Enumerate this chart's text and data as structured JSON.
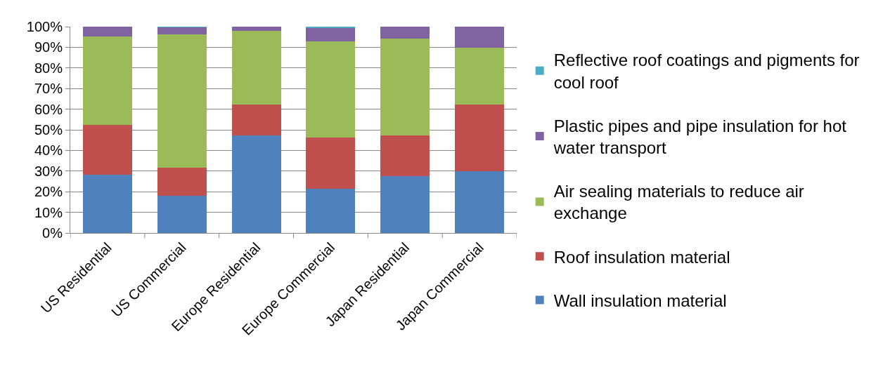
{
  "chart_data": {
    "type": "bar",
    "stacked": true,
    "categories": [
      "US Residential",
      "US Commercial",
      "Europe Residential",
      "Europe Commercial",
      "Japan Residential",
      "Japan Commercial"
    ],
    "series": [
      {
        "name": "Wall insulation material",
        "color": "#4f81bd",
        "values": [
          28.2,
          18.0,
          47.2,
          21.4,
          27.5,
          30.1
        ]
      },
      {
        "name": "Roof insulation material",
        "color": "#c0504d",
        "values": [
          24.3,
          13.8,
          14.9,
          24.9,
          19.9,
          32.2
        ]
      },
      {
        "name": "Air sealing materials to reduce air exchange",
        "color": "#9bbb59",
        "values": [
          42.9,
          64.4,
          36.0,
          46.5,
          46.7,
          27.5
        ]
      },
      {
        "name": "Plastic pipes and pipe insulation for hot water transport",
        "color": "#8064a2",
        "values": [
          4.6,
          3.5,
          1.9,
          6.7,
          5.9,
          10.2
        ]
      },
      {
        "name": "Reflective roof coatings and pigments for cool roof",
        "color": "#4bacc6",
        "values": [
          0,
          0.3,
          0,
          0.5,
          0,
          0
        ]
      }
    ],
    "ylim": [
      0,
      100
    ],
    "yticks": [
      {
        "value": 0,
        "label": "0%"
      },
      {
        "value": 10,
        "label": "10%"
      },
      {
        "value": 20,
        "label": "20%"
      },
      {
        "value": 30,
        "label": "30%"
      },
      {
        "value": 40,
        "label": "40%"
      },
      {
        "value": 50,
        "label": "50%"
      },
      {
        "value": 60,
        "label": "60%"
      },
      {
        "value": 70,
        "label": "70%"
      },
      {
        "value": 80,
        "label": "80%"
      },
      {
        "value": 90,
        "label": "90%"
      },
      {
        "value": 100,
        "label": "100%"
      }
    ],
    "grid": "y",
    "legend": "right"
  }
}
